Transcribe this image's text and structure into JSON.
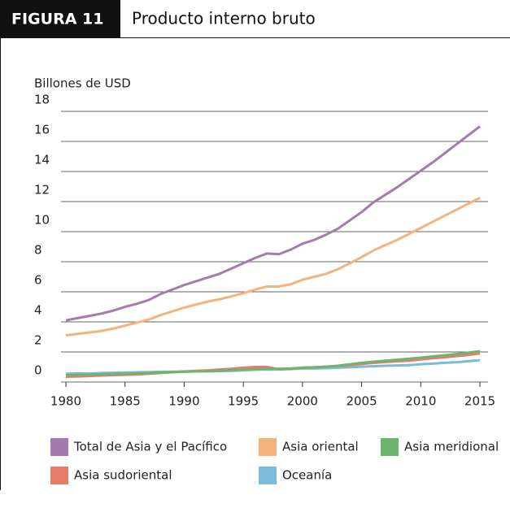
{
  "header": {
    "label": "FIGURA 11",
    "title": "Producto interno bruto"
  },
  "chart_data": {
    "type": "line",
    "y_label": "Billones de USD",
    "x": [
      1980,
      1981,
      1982,
      1983,
      1984,
      1985,
      1986,
      1987,
      1988,
      1989,
      1990,
      1991,
      1992,
      1993,
      1994,
      1995,
      1996,
      1997,
      1998,
      1999,
      2000,
      2001,
      2002,
      2003,
      2004,
      2005,
      2006,
      2007,
      2008,
      2009,
      2010,
      2011,
      2012,
      2013,
      2014,
      2015
    ],
    "xlim": [
      1980,
      2015
    ],
    "xticks": [
      1980,
      1985,
      1990,
      1995,
      2000,
      2005,
      2010,
      2015
    ],
    "ylim": [
      0,
      18
    ],
    "yticks": [
      0,
      2,
      4,
      6,
      8,
      10,
      12,
      14,
      16,
      18
    ],
    "grid": true,
    "series": [
      {
        "name": "Total de Asia y el Pacífico",
        "color": "#a57aae",
        "values": [
          4.1,
          4.25,
          4.4,
          4.55,
          4.75,
          5.0,
          5.2,
          5.45,
          5.85,
          6.15,
          6.45,
          6.7,
          6.95,
          7.2,
          7.55,
          7.9,
          8.25,
          8.55,
          8.5,
          8.8,
          9.2,
          9.45,
          9.8,
          10.2,
          10.75,
          11.3,
          11.95,
          12.45,
          12.95,
          13.5,
          14.05,
          14.6,
          15.2,
          15.8,
          16.4,
          17.0
        ]
      },
      {
        "name": "Asia oriental",
        "color": "#f5b27a",
        "values": [
          3.1,
          3.2,
          3.3,
          3.4,
          3.55,
          3.75,
          3.95,
          4.15,
          4.45,
          4.7,
          4.95,
          5.15,
          5.35,
          5.5,
          5.7,
          5.9,
          6.15,
          6.35,
          6.35,
          6.5,
          6.8,
          7.0,
          7.2,
          7.5,
          7.9,
          8.3,
          8.75,
          9.1,
          9.45,
          9.85,
          10.25,
          10.65,
          11.05,
          11.45,
          11.85,
          12.25
        ]
      },
      {
        "name": "Asia meridional",
        "color": "#6db56d",
        "values": [
          0.45,
          0.47,
          0.49,
          0.51,
          0.53,
          0.55,
          0.57,
          0.6,
          0.63,
          0.66,
          0.68,
          0.7,
          0.72,
          0.75,
          0.78,
          0.82,
          0.86,
          0.88,
          0.88,
          0.9,
          0.95,
          0.98,
          1.02,
          1.08,
          1.18,
          1.28,
          1.35,
          1.42,
          1.48,
          1.55,
          1.62,
          1.7,
          1.78,
          1.86,
          1.95,
          2.05
        ]
      },
      {
        "name": "Asia sudoriental",
        "color": "#e87c6a",
        "values": [
          0.35,
          0.37,
          0.4,
          0.43,
          0.46,
          0.48,
          0.5,
          0.55,
          0.6,
          0.65,
          0.7,
          0.74,
          0.78,
          0.83,
          0.88,
          0.95,
          1.0,
          1.0,
          0.85,
          0.88,
          0.95,
          0.98,
          1.02,
          1.07,
          1.12,
          1.2,
          1.27,
          1.33,
          1.38,
          1.42,
          1.5,
          1.58,
          1.65,
          1.72,
          1.8,
          1.9
        ]
      },
      {
        "name": "Oceanía",
        "color": "#7bbad9",
        "values": [
          0.55,
          0.58,
          0.56,
          0.6,
          0.62,
          0.62,
          0.65,
          0.66,
          0.68,
          0.69,
          0.7,
          0.7,
          0.71,
          0.72,
          0.74,
          0.78,
          0.82,
          0.84,
          0.83,
          0.86,
          0.9,
          0.9,
          0.92,
          0.95,
          0.98,
          1.02,
          1.05,
          1.08,
          1.1,
          1.12,
          1.18,
          1.22,
          1.28,
          1.32,
          1.38,
          1.45
        ]
      }
    ]
  }
}
